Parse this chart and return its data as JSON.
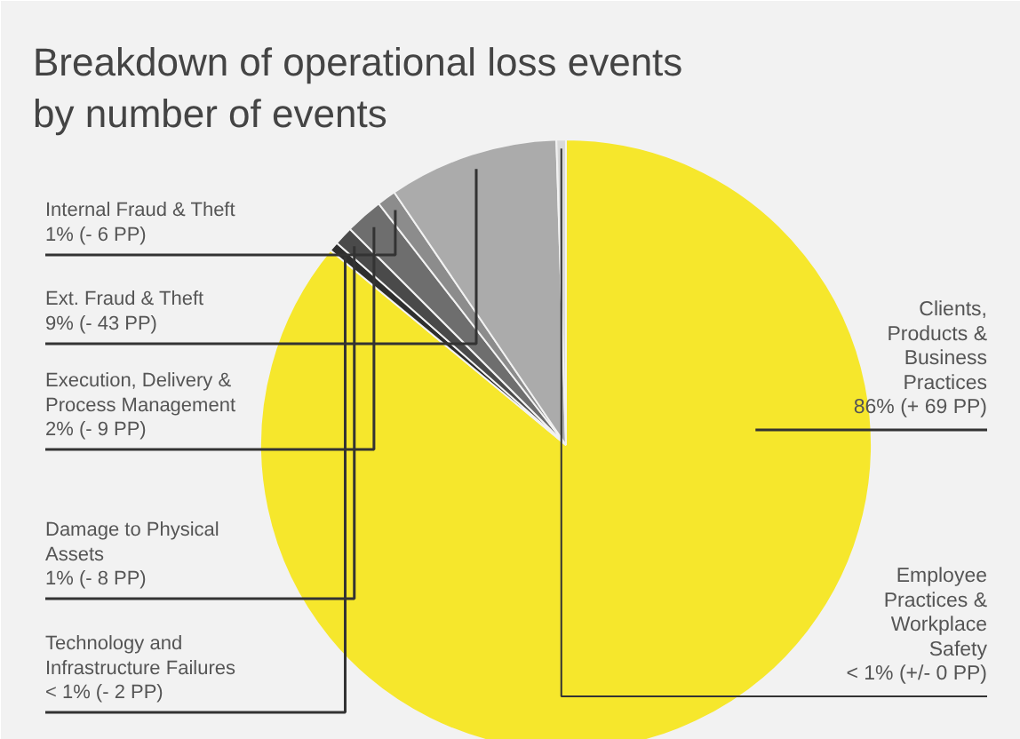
{
  "chart_data": {
    "type": "pie",
    "title": "Breakdown of operational loss events by number of events",
    "categories": [
      "Clients, Products & Business Practices",
      "Technology and Infrastructure Failures",
      "Damage to Physical Assets",
      "Execution, Delivery & Process Management",
      "Internal Fraud & Theft",
      "Ext. Fraud & Theft",
      "Employee Practices & Workplace Safety"
    ],
    "values": [
      86,
      0.5,
      1,
      2,
      1,
      9,
      0.5
    ],
    "value_labels": [
      "86% (+ 69 PP)",
      "< 1% (- 2 PP)",
      "1% (- 8 PP)",
      "2% (- 9 PP)",
      "1% (- 6 PP)",
      "9% (- 43 PP)",
      "< 1% (+/- 0 PP)"
    ],
    "colors": [
      "#f6e72c",
      "#2e2e2e",
      "#4a4a4a",
      "#6e6e6e",
      "#8c8c8c",
      "#ababab",
      "#d9d9d9"
    ],
    "legend": false
  }
}
